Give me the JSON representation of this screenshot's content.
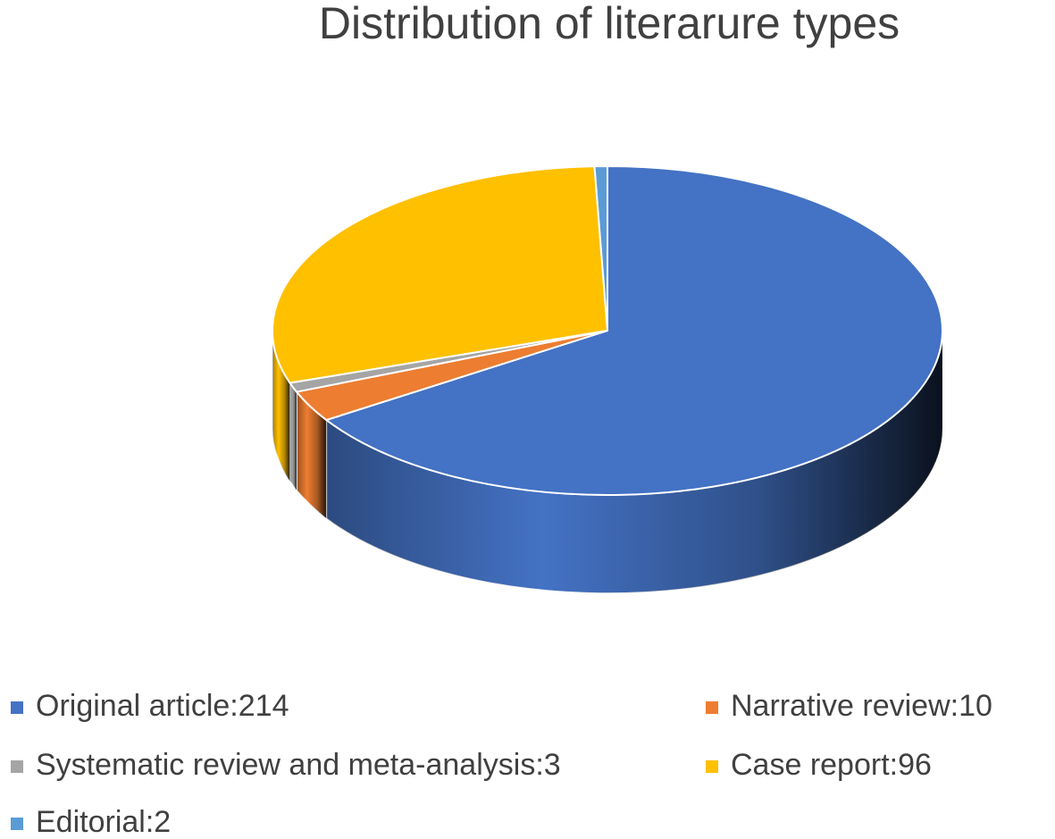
{
  "chart_data": {
    "type": "pie3d",
    "title": "Distribution of literarure types",
    "categories": [
      "Original article:214",
      "Narrative review:10",
      "Systematic review and meta-analysis:3",
      "Case report:96",
      "Editorial:2"
    ],
    "values": [
      214,
      10,
      3,
      96,
      2
    ],
    "colors": [
      "#4472c4",
      "#ed7d31",
      "#a5a5a5",
      "#ffc000",
      "#5b9bd5"
    ]
  }
}
